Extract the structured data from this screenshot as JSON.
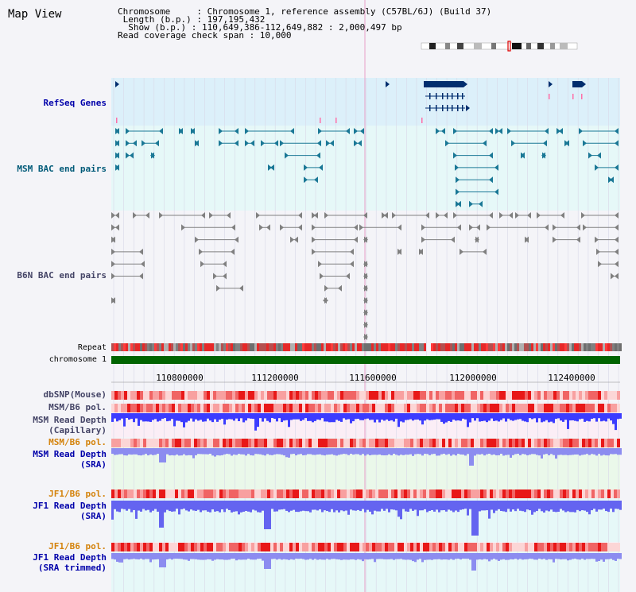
{
  "app": {
    "title": "Map View"
  },
  "info": {
    "chromosome": "Chromosome     : Chromosome 1, reference assembly (C57BL/6J) (Build 37)",
    "length": " Length (b.p.) : 197,195,432",
    "show": "  Show (b.p.) : 110,649,386-112,649,882 : 2,000,497 bp",
    "coverage": "Read coverage check span : 10,000"
  },
  "tracks": {
    "refseq": "RefSeq Genes",
    "msm_bac": "MSM BAC end pairs",
    "b6n_bac": "B6N BAC end pairs",
    "repeat": "Repeat",
    "chromosome": "chromosome 1",
    "dbsnp": "dbSNP(Mouse)",
    "msm_b6_pol_1": "MSM/B6 pol.",
    "msm_read_depth_cap_1": "MSM Read Depth",
    "msm_read_depth_cap_2": "(Capillary)",
    "msm_b6_pol_2": "MSM/B6 pol.",
    "msm_read_depth_sra_1": "MSM Read Depth",
    "msm_read_depth_sra_2": "(SRA)",
    "jf1_b6_pol_1": "JF1/B6 pol.",
    "jf1_read_depth_sra_1": "JF1 Read Depth",
    "jf1_read_depth_sra_2": "(SRA)",
    "jf1_b6_pol_2": "JF1/B6 pol.",
    "jf1_read_depth_trim_1": "JF1 Read Depth",
    "jf1_read_depth_trim_2": "(SRA trimmed)"
  },
  "axis": {
    "ticks": [
      "110800000",
      "111200000",
      "111600000",
      "112000000",
      "112400000"
    ]
  },
  "colors": {
    "refseq_bg": "#dcf0fa",
    "bac_bg": "#e6f8f8",
    "gene": "#002d6e",
    "msm_feature": "#1a7896",
    "b6n_feature": "#808080",
    "chromosome_bar": "#006400",
    "snp": "#e83030",
    "depth": "#3c3cff",
    "depth_light": "#8c8cf0"
  }
}
